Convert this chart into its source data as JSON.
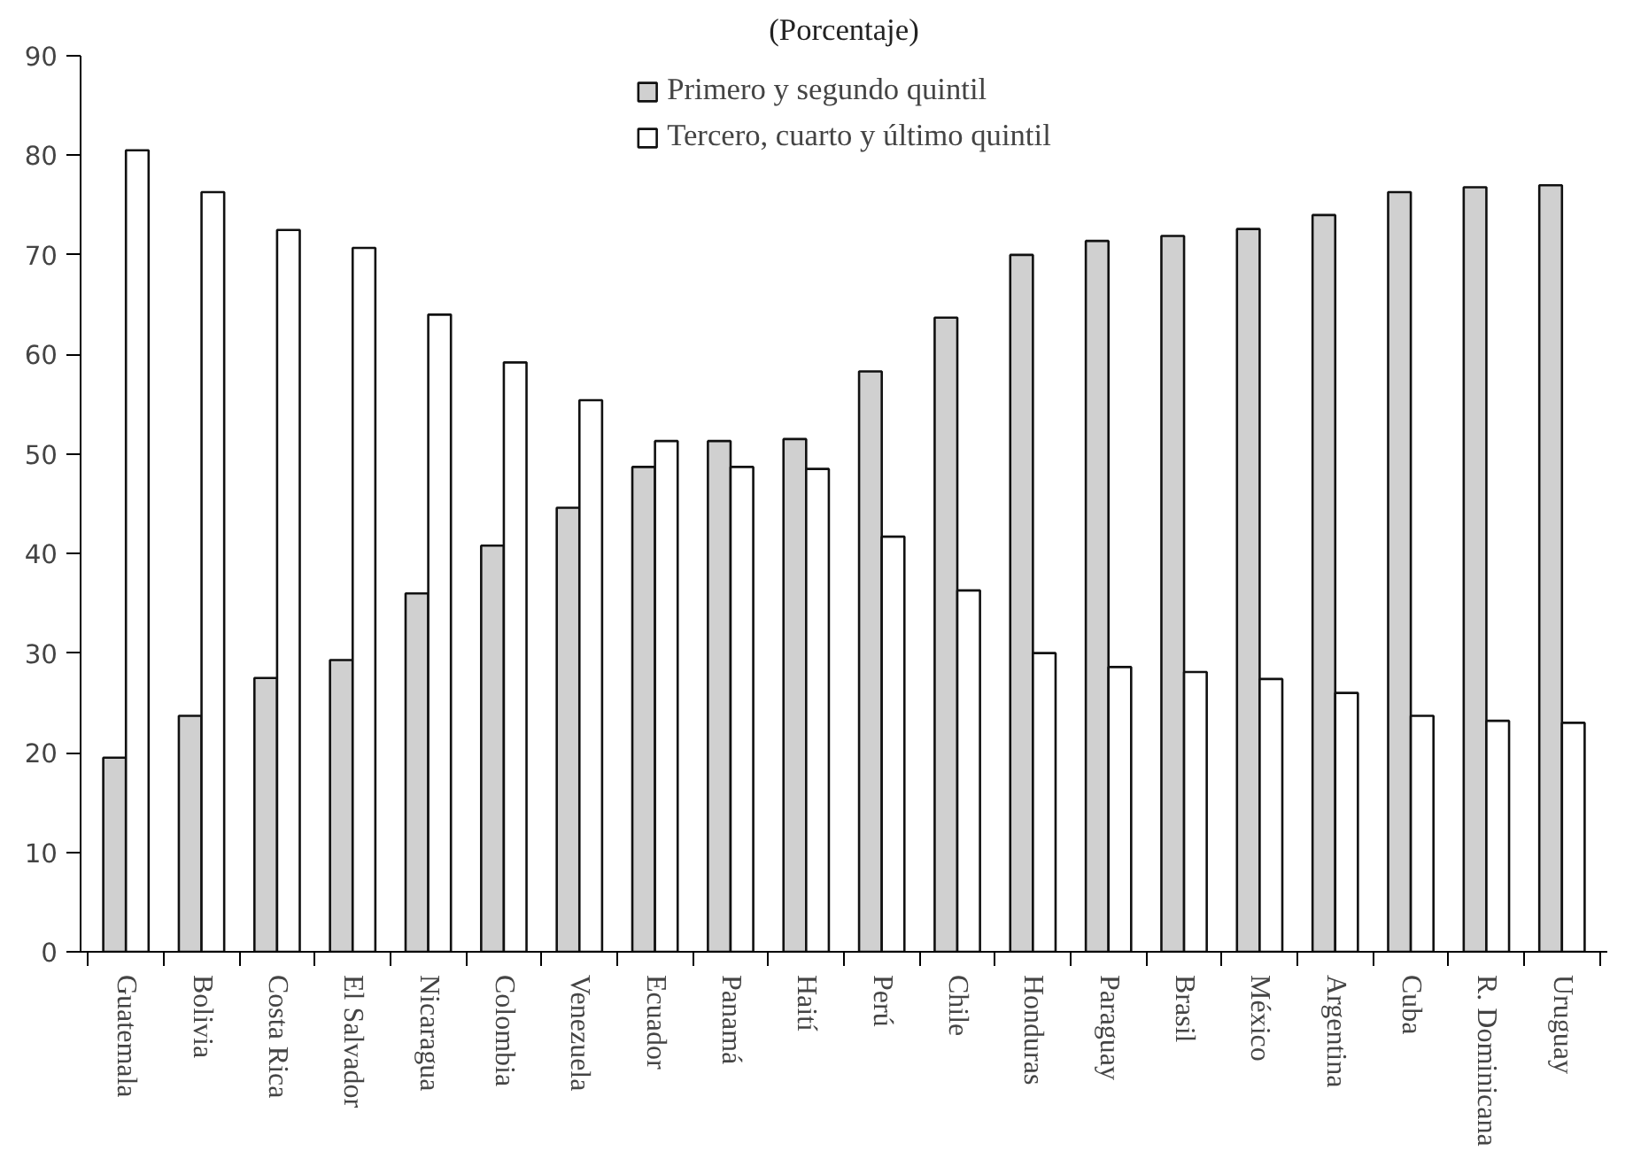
{
  "chart_data": {
    "type": "bar",
    "subtitle": "(Porcentaje)",
    "categories": [
      "Guatemala",
      "Bolivia",
      "Costa Rica",
      "El Salvador",
      "Nicaragua",
      "Colombia",
      "Venezuela",
      "Ecuador",
      "Panamá",
      "Haití",
      "Perú",
      "Chile",
      "Honduras",
      "Paraguay",
      "Brasil",
      "México",
      "Argentina",
      "Cuba",
      "R. Dominicana",
      "Uruguay"
    ],
    "series": [
      {
        "name": "Primero y segundo quintil",
        "color": "#d0d0d0",
        "values": [
          19.5,
          23.7,
          27.5,
          29.3,
          36,
          40.8,
          44.6,
          48.7,
          51.3,
          51.5,
          58.3,
          63.7,
          70,
          71.4,
          71.9,
          72.6,
          74,
          76.3,
          76.8,
          77
        ]
      },
      {
        "name": "Tercero, cuarto y último quintil",
        "color": "#ffffff",
        "values": [
          80.5,
          76.3,
          72.5,
          70.7,
          64,
          59.2,
          55.4,
          51.3,
          48.7,
          48.5,
          41.7,
          36.3,
          30,
          28.6,
          28.1,
          27.4,
          26,
          23.7,
          23.2,
          23
        ]
      }
    ],
    "ylim": [
      0,
      90
    ],
    "yticks": [
      0,
      10,
      20,
      30,
      40,
      50,
      60,
      70,
      80,
      90
    ],
    "grid": false,
    "legend": "top"
  }
}
